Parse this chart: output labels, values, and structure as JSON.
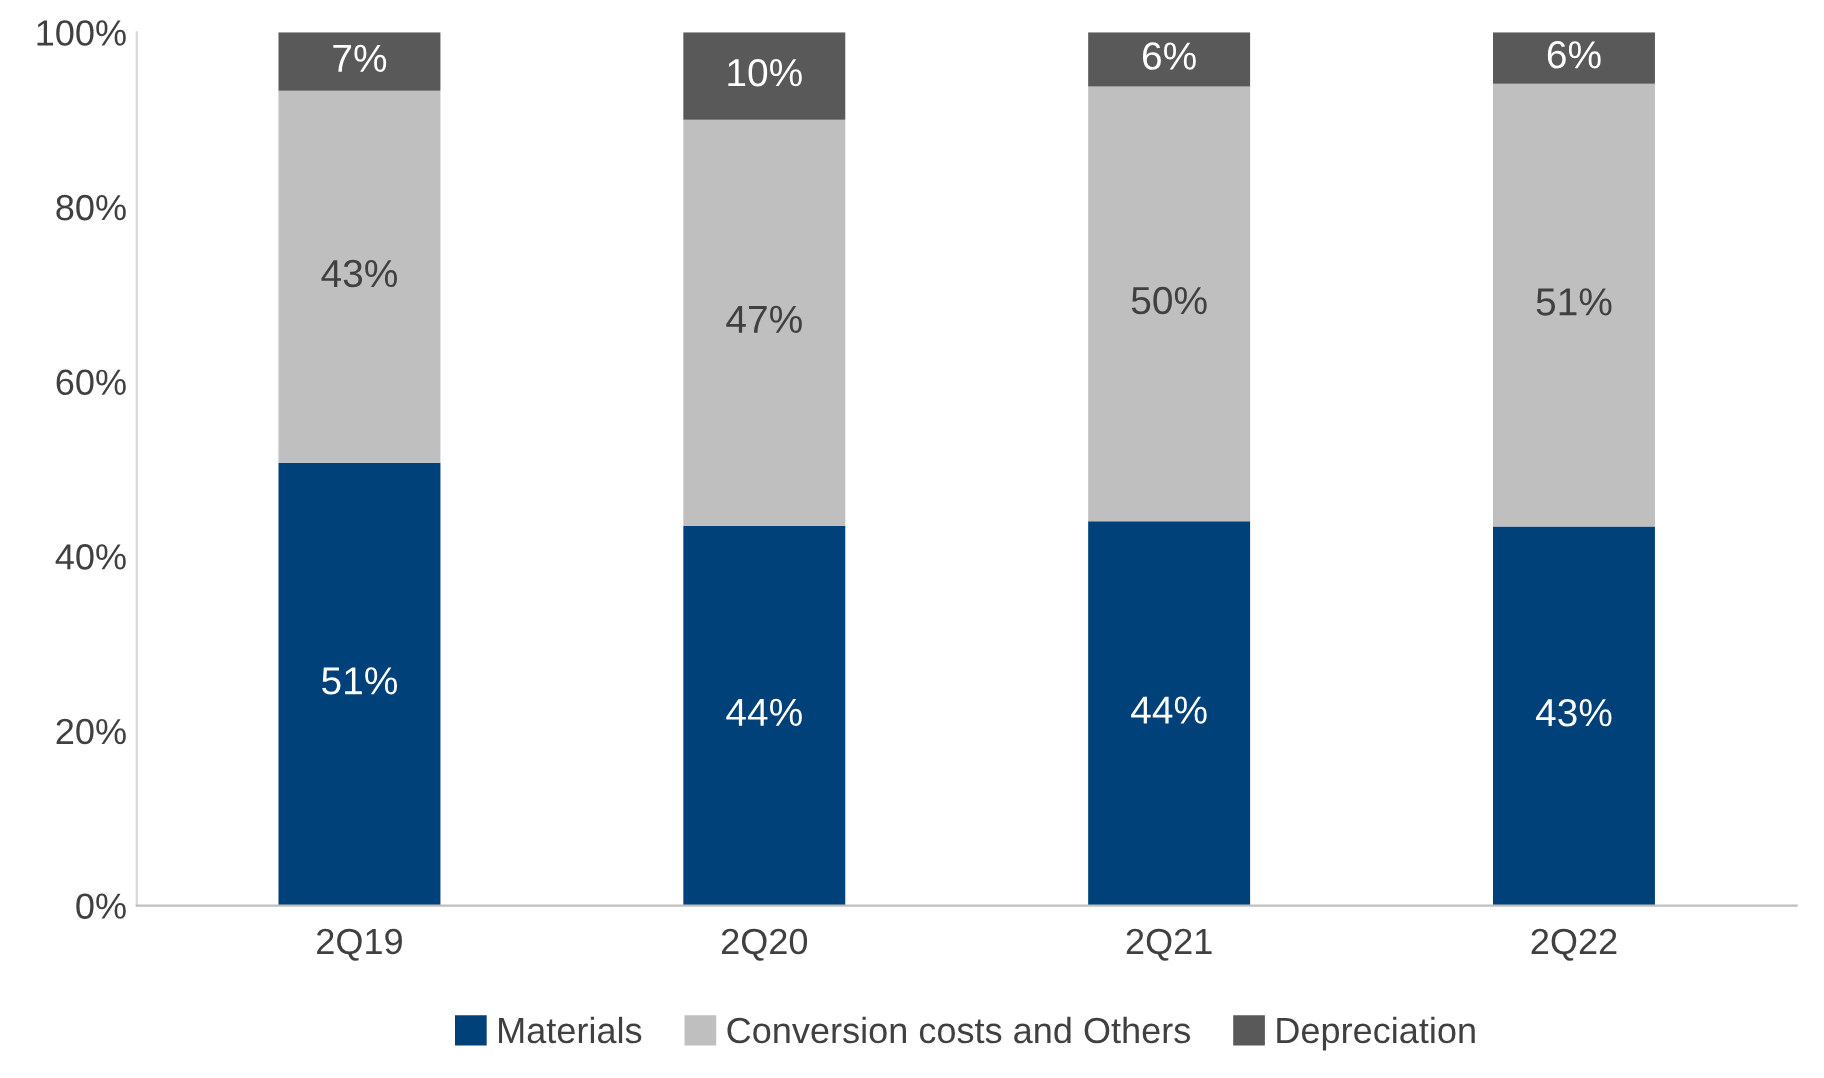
{
  "chart_data": {
    "type": "bar",
    "stacked": true,
    "categories": [
      "2Q19",
      "2Q20",
      "2Q21",
      "2Q22"
    ],
    "series": [
      {
        "name": "Materials",
        "color": "#004179",
        "values": [
          50.7,
          43.5,
          44.0,
          43.4
        ],
        "value_labels": [
          "51%",
          "44%",
          "44%",
          "43%"
        ]
      },
      {
        "name": "Conversion costs and Others",
        "color": "#bfbfbf",
        "values": [
          42.6,
          46.5,
          49.8,
          50.7
        ],
        "value_labels": [
          "43%",
          "47%",
          "50%",
          "51%"
        ]
      },
      {
        "name": "Depreciation",
        "color": "#595959",
        "values": [
          6.7,
          10.0,
          6.2,
          5.9
        ],
        "value_labels": [
          "7%",
          "10%",
          "6%",
          "6%"
        ]
      }
    ],
    "ylim": [
      0,
      100
    ],
    "yticks": [
      {
        "value": 0,
        "label": "0%"
      },
      {
        "value": 20,
        "label": "20%"
      },
      {
        "value": 40,
        "label": "40%"
      },
      {
        "value": 60,
        "label": "60%"
      },
      {
        "value": 80,
        "label": "80%"
      },
      {
        "value": 100,
        "label": "100%"
      }
    ],
    "grid": false,
    "legend": "bottom"
  }
}
